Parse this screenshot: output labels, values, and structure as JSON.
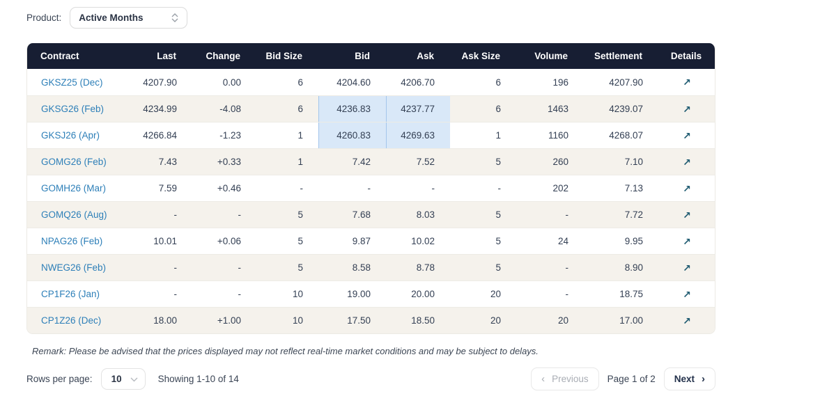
{
  "product_filter": {
    "label": "Product:",
    "value": "Active Months"
  },
  "table": {
    "columns": [
      {
        "key": "contract",
        "label": "Contract",
        "align": "left"
      },
      {
        "key": "last",
        "label": "Last",
        "align": "right"
      },
      {
        "key": "change",
        "label": "Change",
        "align": "right"
      },
      {
        "key": "bid_size",
        "label": "Bid Size",
        "align": "right"
      },
      {
        "key": "bid",
        "label": "Bid",
        "align": "right"
      },
      {
        "key": "ask",
        "label": "Ask",
        "align": "right"
      },
      {
        "key": "ask_size",
        "label": "Ask Size",
        "align": "right"
      },
      {
        "key": "volume",
        "label": "Volume",
        "align": "right"
      },
      {
        "key": "settlement",
        "label": "Settlement",
        "align": "right"
      },
      {
        "key": "details",
        "label": "Details",
        "align": "center"
      }
    ],
    "details_icon": "↗",
    "rows": [
      {
        "contract": "GKSZ25 (Dec)",
        "last": "4207.90",
        "change": "0.00",
        "bid_size": "6",
        "bid": "4204.60",
        "ask": "4206.70",
        "ask_size": "6",
        "volume": "196",
        "settlement": "4207.90",
        "highlight": false
      },
      {
        "contract": "GKSG26 (Feb)",
        "last": "4234.99",
        "change": "-4.08",
        "bid_size": "6",
        "bid": "4236.83",
        "ask": "4237.77",
        "ask_size": "6",
        "volume": "1463",
        "settlement": "4239.07",
        "highlight": true
      },
      {
        "contract": "GKSJ26 (Apr)",
        "last": "4266.84",
        "change": "-1.23",
        "bid_size": "1",
        "bid": "4260.83",
        "ask": "4269.63",
        "ask_size": "1",
        "volume": "1160",
        "settlement": "4268.07",
        "highlight": true
      },
      {
        "contract": "GOMG26 (Feb)",
        "last": "7.43",
        "change": "+0.33",
        "bid_size": "1",
        "bid": "7.42",
        "ask": "7.52",
        "ask_size": "5",
        "volume": "260",
        "settlement": "7.10",
        "highlight": false
      },
      {
        "contract": "GOMH26 (Mar)",
        "last": "7.59",
        "change": "+0.46",
        "bid_size": "-",
        "bid": "-",
        "ask": "-",
        "ask_size": "-",
        "volume": "202",
        "settlement": "7.13",
        "highlight": false
      },
      {
        "contract": "GOMQ26 (Aug)",
        "last": "-",
        "change": "-",
        "bid_size": "5",
        "bid": "7.68",
        "ask": "8.03",
        "ask_size": "5",
        "volume": "-",
        "settlement": "7.72",
        "highlight": false
      },
      {
        "contract": "NPAG26 (Feb)",
        "last": "10.01",
        "change": "+0.06",
        "bid_size": "5",
        "bid": "9.87",
        "ask": "10.02",
        "ask_size": "5",
        "volume": "24",
        "settlement": "9.95",
        "highlight": false
      },
      {
        "contract": "NWEG26 (Feb)",
        "last": "-",
        "change": "-",
        "bid_size": "5",
        "bid": "8.58",
        "ask": "8.78",
        "ask_size": "5",
        "volume": "-",
        "settlement": "8.90",
        "highlight": false
      },
      {
        "contract": "CP1F26 (Jan)",
        "last": "-",
        "change": "-",
        "bid_size": "10",
        "bid": "19.00",
        "ask": "20.00",
        "ask_size": "20",
        "volume": "-",
        "settlement": "18.75",
        "highlight": false
      },
      {
        "contract": "CP1Z26 (Dec)",
        "last": "18.00",
        "change": "+1.00",
        "bid_size": "10",
        "bid": "17.50",
        "ask": "18.50",
        "ask_size": "20",
        "volume": "20",
        "settlement": "17.00",
        "highlight": false
      }
    ]
  },
  "remark": "Remark: Please be advised that the prices displayed may not reflect real-time market conditions and may be subject to delays.",
  "footer": {
    "rows_per_page_label": "Rows per page:",
    "rows_per_page_value": "10",
    "showing_text": "Showing 1-10 of 14",
    "pagination": {
      "previous_label": "Previous",
      "page_info": "Page 1 of 2",
      "next_label": "Next"
    }
  },
  "colors": {
    "header_bg": "#171e33",
    "row_alt_bg": "#f5f2ec",
    "highlight_bg": "#d9e8f8",
    "highlight_border": "#a3c6ec",
    "link_blue": "#2d7fb8",
    "arrow_teal": "#1d5a70"
  }
}
